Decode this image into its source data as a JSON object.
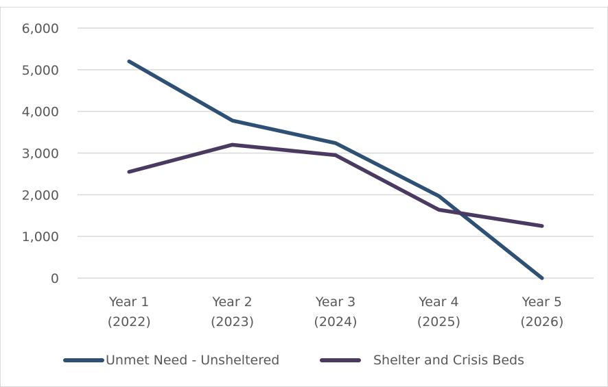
{
  "chart_data": {
    "type": "line",
    "categories": [
      [
        "Year 1",
        "(2022)"
      ],
      [
        "Year 2",
        "(2023)"
      ],
      [
        "Year 3",
        "(2024)"
      ],
      [
        "Year 4",
        "(2025)"
      ],
      [
        "Year 5",
        "(2026)"
      ]
    ],
    "y_ticks": [
      "0",
      "1,000",
      "2,000",
      "3,000",
      "4,000",
      "5,000",
      "6,000"
    ],
    "ylim": [
      0,
      6000
    ],
    "grid": true,
    "legend_position": "bottom",
    "series": [
      {
        "name": "Unmet Need - Unsheltered",
        "color": "#2e5074",
        "values": [
          5200,
          3780,
          3240,
          1970,
          0
        ]
      },
      {
        "name": "Shelter and Crisis Beds",
        "color": "#4a3a62",
        "values": [
          2550,
          3200,
          2950,
          1640,
          1250
        ]
      }
    ],
    "gridline_color": "#d9d9d9",
    "frame_color": "#d9d9d9"
  }
}
